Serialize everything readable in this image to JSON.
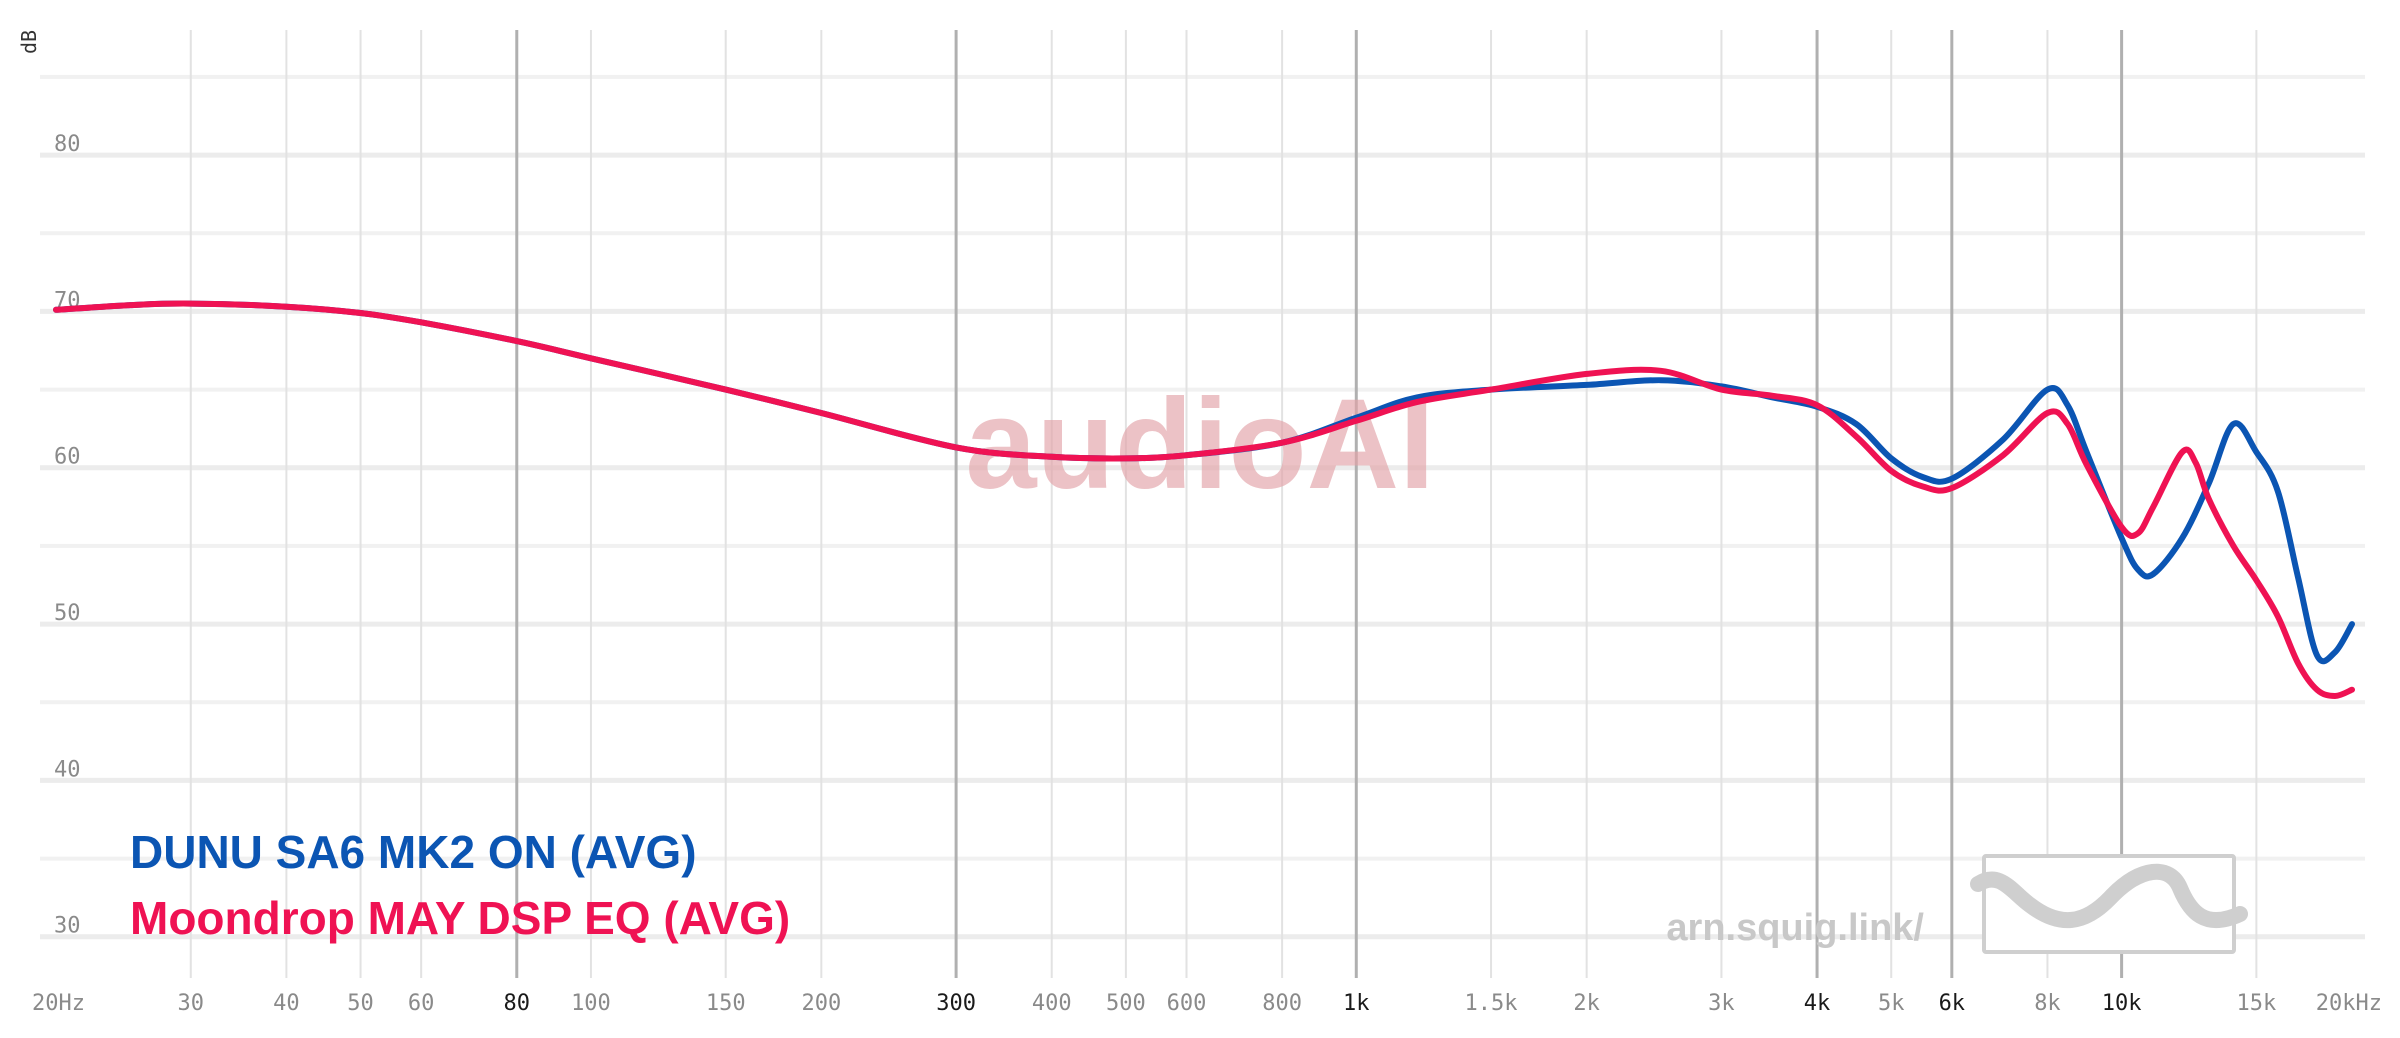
{
  "chart_data": {
    "type": "line",
    "title": "",
    "xlabel": "",
    "ylabel": "dB",
    "x_scale": "log",
    "xlim": [
      20,
      20000
    ],
    "ylim": [
      28,
      88
    ],
    "x_ticks": [
      {
        "value": 20,
        "label": "20Hz",
        "major": false
      },
      {
        "value": 30,
        "label": "30",
        "major": false
      },
      {
        "value": 40,
        "label": "40",
        "major": false
      },
      {
        "value": 50,
        "label": "50",
        "major": false
      },
      {
        "value": 60,
        "label": "60",
        "major": false
      },
      {
        "value": 80,
        "label": "80",
        "major": true
      },
      {
        "value": 100,
        "label": "100",
        "major": false
      },
      {
        "value": 150,
        "label": "150",
        "major": false
      },
      {
        "value": 200,
        "label": "200",
        "major": false
      },
      {
        "value": 300,
        "label": "300",
        "major": true
      },
      {
        "value": 400,
        "label": "400",
        "major": false
      },
      {
        "value": 500,
        "label": "500",
        "major": false
      },
      {
        "value": 600,
        "label": "600",
        "major": false
      },
      {
        "value": 800,
        "label": "800",
        "major": false
      },
      {
        "value": 1000,
        "label": "1k",
        "major": true
      },
      {
        "value": 1500,
        "label": "1.5k",
        "major": false
      },
      {
        "value": 2000,
        "label": "2k",
        "major": false
      },
      {
        "value": 3000,
        "label": "3k",
        "major": false
      },
      {
        "value": 4000,
        "label": "4k",
        "major": true
      },
      {
        "value": 5000,
        "label": "5k",
        "major": false
      },
      {
        "value": 6000,
        "label": "6k",
        "major": true
      },
      {
        "value": 8000,
        "label": "8k",
        "major": false
      },
      {
        "value": 10000,
        "label": "10k",
        "major": true
      },
      {
        "value": 15000,
        "label": "15k",
        "major": false
      },
      {
        "value": 20000,
        "label": "20kHz",
        "major": false
      }
    ],
    "y_ticks": [
      {
        "value": 30,
        "label": "30"
      },
      {
        "value": 40,
        "label": "40"
      },
      {
        "value": 50,
        "label": "50"
      },
      {
        "value": 60,
        "label": "60"
      },
      {
        "value": 70,
        "label": "70"
      },
      {
        "value": 80,
        "label": "80"
      }
    ],
    "y_minor_gridlines": [
      35,
      45,
      55,
      65,
      75,
      85
    ],
    "grid": true,
    "legend_position": "bottom-left",
    "series": [
      {
        "name": "DUNU SA6 MK2 ON (AVG)",
        "color": "#0b55b3",
        "points": [
          [
            20,
            70.1
          ],
          [
            25,
            70.4
          ],
          [
            30,
            70.5
          ],
          [
            40,
            70.3
          ],
          [
            50,
            69.9
          ],
          [
            60,
            69.3
          ],
          [
            80,
            68.1
          ],
          [
            100,
            67.0
          ],
          [
            150,
            65.0
          ],
          [
            200,
            63.5
          ],
          [
            300,
            61.3
          ],
          [
            400,
            60.7
          ],
          [
            500,
            60.6
          ],
          [
            600,
            60.8
          ],
          [
            800,
            61.6
          ],
          [
            1000,
            63.2
          ],
          [
            1200,
            64.5
          ],
          [
            1500,
            65.0
          ],
          [
            2000,
            65.3
          ],
          [
            2500,
            65.6
          ],
          [
            3000,
            65.2
          ],
          [
            3500,
            64.5
          ],
          [
            4000,
            63.9
          ],
          [
            4500,
            62.8
          ],
          [
            5000,
            60.6
          ],
          [
            5500,
            59.4
          ],
          [
            6000,
            59.3
          ],
          [
            7000,
            61.8
          ],
          [
            8000,
            65.0
          ],
          [
            8500,
            64.0
          ],
          [
            9000,
            61.0
          ],
          [
            10000,
            55.5
          ],
          [
            10500,
            53.5
          ],
          [
            11000,
            53.2
          ],
          [
            12000,
            55.5
          ],
          [
            13000,
            59.0
          ],
          [
            14000,
            62.8
          ],
          [
            15000,
            61.0
          ],
          [
            16000,
            58.5
          ],
          [
            17000,
            53.0
          ],
          [
            18000,
            48.0
          ],
          [
            19000,
            48.2
          ],
          [
            20000,
            50.0
          ]
        ]
      },
      {
        "name": "Moondrop MAY DSP EQ (AVG)",
        "color": "#ef1253",
        "points": [
          [
            20,
            70.1
          ],
          [
            25,
            70.4
          ],
          [
            30,
            70.5
          ],
          [
            40,
            70.3
          ],
          [
            50,
            69.9
          ],
          [
            60,
            69.3
          ],
          [
            80,
            68.1
          ],
          [
            100,
            67.0
          ],
          [
            150,
            65.0
          ],
          [
            200,
            63.5
          ],
          [
            300,
            61.3
          ],
          [
            400,
            60.7
          ],
          [
            500,
            60.6
          ],
          [
            600,
            60.8
          ],
          [
            800,
            61.6
          ],
          [
            1000,
            63.0
          ],
          [
            1200,
            64.2
          ],
          [
            1500,
            65.0
          ],
          [
            2000,
            66.0
          ],
          [
            2500,
            66.2
          ],
          [
            3000,
            65.0
          ],
          [
            3500,
            64.6
          ],
          [
            4000,
            64.0
          ],
          [
            4500,
            62.0
          ],
          [
            5000,
            59.8
          ],
          [
            5500,
            58.8
          ],
          [
            6000,
            58.7
          ],
          [
            7000,
            60.8
          ],
          [
            8000,
            63.5
          ],
          [
            8500,
            62.8
          ],
          [
            9000,
            60.2
          ],
          [
            10000,
            56.2
          ],
          [
            10500,
            55.8
          ],
          [
            11000,
            57.5
          ],
          [
            12000,
            61.0
          ],
          [
            12500,
            60.3
          ],
          [
            13000,
            58.0
          ],
          [
            14000,
            55.0
          ],
          [
            15000,
            52.8
          ],
          [
            16000,
            50.5
          ],
          [
            17000,
            47.5
          ],
          [
            18000,
            45.8
          ],
          [
            19000,
            45.4
          ],
          [
            20000,
            45.8
          ]
        ]
      }
    ],
    "watermark": "audioAI",
    "site_label": "arn.squig.link/"
  }
}
